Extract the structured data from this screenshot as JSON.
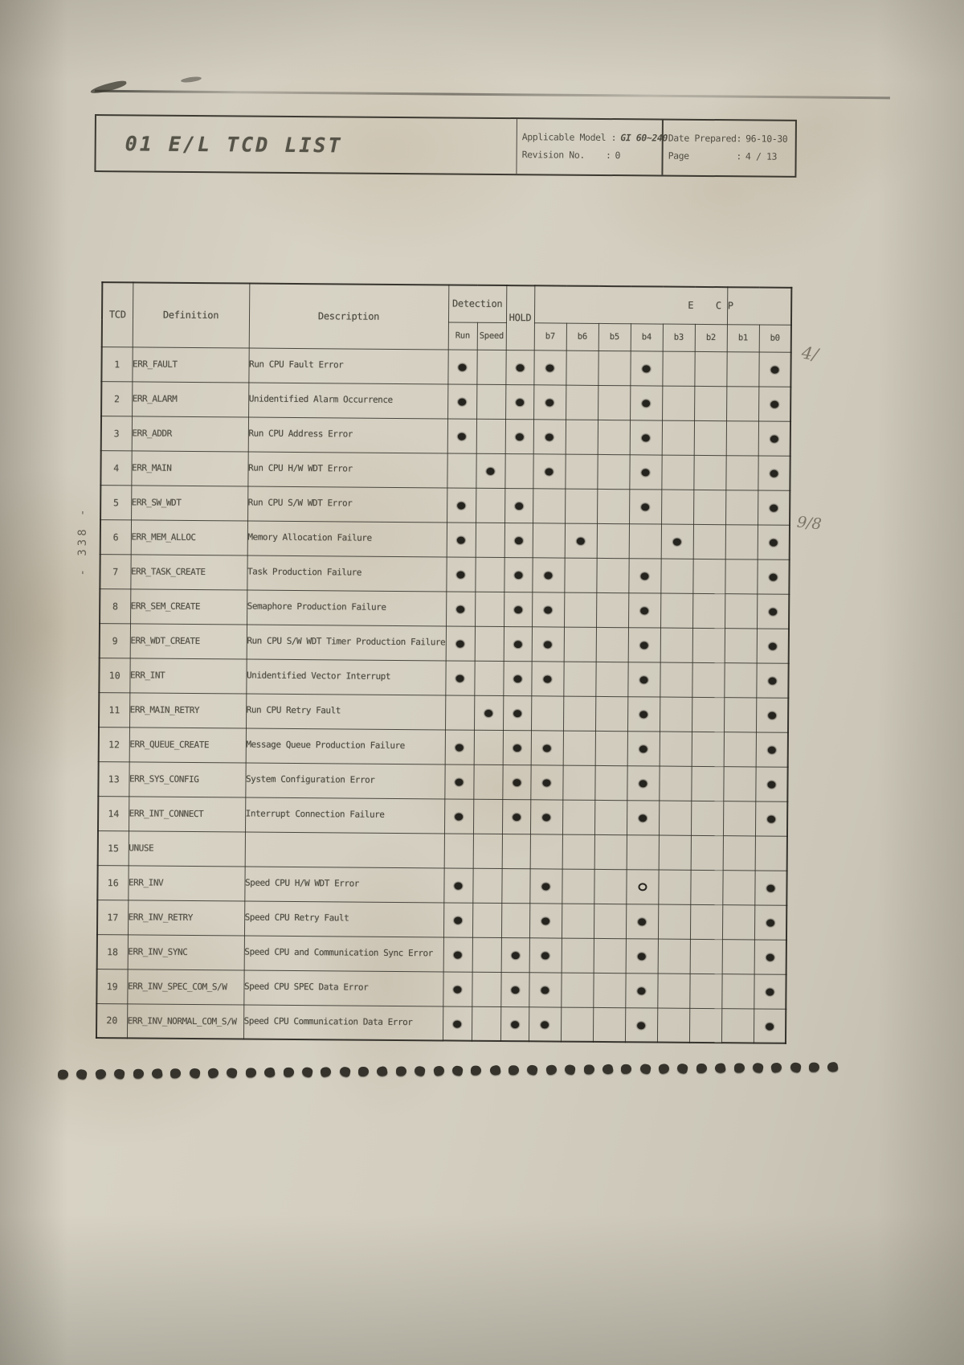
{
  "document": {
    "title": "01 E/L TCD LIST",
    "info": {
      "applicable_model_label": "Applicable Model :",
      "applicable_model_value": "GI 60~240",
      "revision_label": "Revision No.    :",
      "revision_value": "0",
      "date_prepared_label": "Date Prepared:",
      "date_prepared_value": "96-10-30",
      "page_label": "Page         :",
      "page_value": "4 / 13"
    },
    "side_page_number": "- 338 -",
    "handwritten_marks": {
      "upper": "4/",
      "lower": "9/8"
    },
    "binding_hole_count": 42
  },
  "table": {
    "headers": {
      "tcd": "TCD",
      "definition": "Definition",
      "description": "Description",
      "detection": "Detection",
      "hold": "HOLD",
      "group_ec": "E    C ",
      "group_p": "P",
      "run": "Run",
      "speed": "Speed",
      "bits": [
        "b7",
        "b6",
        "b5",
        "b4",
        "b3",
        "b2",
        "b1",
        "b0"
      ]
    },
    "rows": [
      {
        "tcd": "1",
        "definition": "ERR_FAULT",
        "description": "Run CPU Fault Error",
        "dots": [
          "run",
          "hold",
          "b7",
          "b4",
          "b0"
        ]
      },
      {
        "tcd": "2",
        "definition": "ERR_ALARM",
        "description": "Unidentified Alarm Occurrence",
        "dots": [
          "run",
          "hold",
          "b7",
          "b4",
          "b0"
        ]
      },
      {
        "tcd": "3",
        "definition": "ERR_ADDR",
        "description": "Run CPU Address Error",
        "dots": [
          "run",
          "hold",
          "b7",
          "b4",
          "b0"
        ]
      },
      {
        "tcd": "4",
        "definition": "ERR_MAIN",
        "description": "Run CPU H/W WDT Error",
        "dots": [
          "speed",
          "b7",
          "b4",
          "b0"
        ]
      },
      {
        "tcd": "5",
        "definition": "ERR_SW_WDT",
        "description": "Run CPU S/W WDT Error",
        "dots": [
          "run",
          "hold",
          "b4",
          "b0"
        ]
      },
      {
        "tcd": "6",
        "definition": "ERR_MEM_ALLOC",
        "description": "Memory Allocation Failure",
        "dots": [
          "run",
          "hold",
          "b6",
          "b3",
          "b0"
        ]
      },
      {
        "tcd": "7",
        "definition": "ERR_TASK_CREATE",
        "description": "Task Production Failure",
        "dots": [
          "run",
          "hold",
          "b7",
          "b4",
          "b0"
        ]
      },
      {
        "tcd": "8",
        "definition": "ERR_SEM_CREATE",
        "description": "Semaphore Production Failure",
        "dots": [
          "run",
          "hold",
          "b7",
          "b4",
          "b0"
        ]
      },
      {
        "tcd": "9",
        "definition": "ERR_WDT_CREATE",
        "description": "Run CPU S/W WDT Timer Production Failure",
        "dots": [
          "run",
          "hold",
          "b7",
          "b4",
          "b0"
        ]
      },
      {
        "tcd": "10",
        "definition": "ERR_INT",
        "description": "Unidentified Vector Interrupt",
        "dots": [
          "run",
          "hold",
          "b7",
          "b4",
          "b0"
        ]
      },
      {
        "tcd": "11",
        "definition": "ERR_MAIN_RETRY",
        "description": "Run CPU Retry Fault",
        "dots": [
          "speed",
          "hold",
          "b4",
          "b0"
        ]
      },
      {
        "tcd": "12",
        "definition": "ERR_QUEUE_CREATE",
        "description": "Message Queue Production Failure",
        "dots": [
          "run",
          "hold",
          "b7",
          "b4",
          "b0"
        ]
      },
      {
        "tcd": "13",
        "definition": "ERR_SYS_CONFIG",
        "description": "System Configuration Error",
        "dots": [
          "run",
          "hold",
          "b7",
          "b4",
          "b0"
        ]
      },
      {
        "tcd": "14",
        "definition": "ERR_INT_CONNECT",
        "description": "Interrupt Connection Failure",
        "dots": [
          "run",
          "hold",
          "b7",
          "b4",
          "b0"
        ]
      },
      {
        "tcd": "15",
        "definition": "UNUSE",
        "description": "",
        "dots": []
      },
      {
        "tcd": "16",
        "definition": "ERR_INV",
        "description": "Speed CPU H/W WDT Error",
        "dots": [
          "run",
          "b7",
          "b0"
        ],
        "open_dots": [
          "b4"
        ]
      },
      {
        "tcd": "17",
        "definition": "ERR_INV_RETRY",
        "description": "Speed CPU Retry Fault",
        "dots": [
          "run",
          "b7",
          "b4",
          "b0"
        ]
      },
      {
        "tcd": "18",
        "definition": "ERR_INV_SYNC",
        "description": "Speed CPU and Communication Sync Error",
        "dots": [
          "run",
          "hold",
          "b7",
          "b4",
          "b0"
        ]
      },
      {
        "tcd": "19",
        "definition": "ERR_INV_SPEC_COM_S/W",
        "description": "Speed CPU SPEC Data Error",
        "dots": [
          "run",
          "hold",
          "b7",
          "b4",
          "b0"
        ]
      },
      {
        "tcd": "20",
        "definition": "ERR_INV_NORMAL_COM_S/W",
        "description": "Speed CPU Communication Data Error",
        "dots": [
          "run",
          "hold",
          "b7",
          "b4",
          "b0"
        ]
      }
    ]
  }
}
